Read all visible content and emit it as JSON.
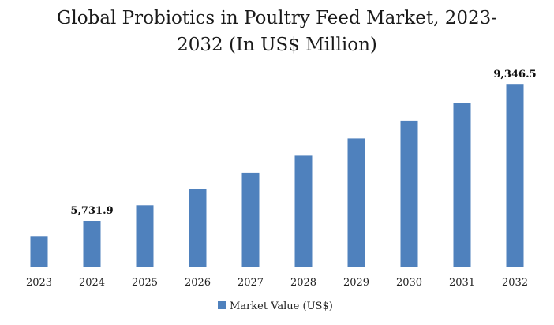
{
  "chart_data": {
    "type": "bar",
    "title_line1": "Global Probiotics in Poultry Feed Market, 2023-",
    "title_line2": "2032 (In US$ Million)",
    "xlabel": "",
    "ylabel": "",
    "categories": [
      "2023",
      "2024",
      "2025",
      "2026",
      "2027",
      "2028",
      "2029",
      "2030",
      "2031",
      "2032"
    ],
    "series": [
      {
        "name": "Market Value (US$)",
        "color": "#4f81bd",
        "values": [
          5330,
          5731.9,
          6145,
          6570,
          7010,
          7460,
          7920,
          8390,
          8860,
          9346.5
        ],
        "data_labels": [
          null,
          "5,731.9",
          null,
          null,
          null,
          null,
          null,
          null,
          null,
          "9,346.5"
        ]
      }
    ],
    "ylim": [
      4520,
      9790
    ],
    "grid": false,
    "legend": "bottom-center",
    "axis_color": "#bfbfbf"
  }
}
